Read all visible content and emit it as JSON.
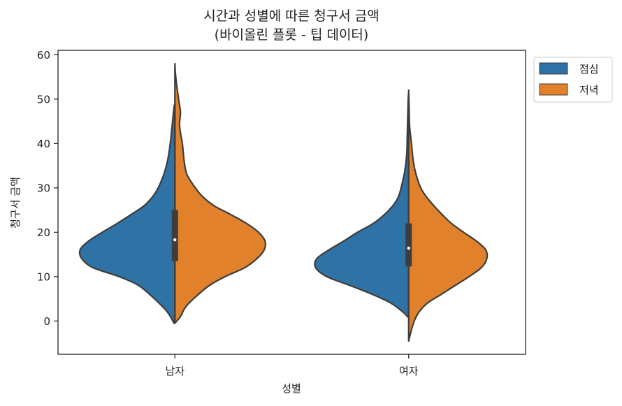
{
  "chart_data": {
    "type": "violin",
    "title_line1": "시간과 성별에 따른 청구서 금액",
    "title_line2": "(바이올린 플롯 - 팁 데이터)",
    "xlabel": "성별",
    "ylabel": "청구서 금액",
    "categories": [
      "남자",
      "여자"
    ],
    "ylim": [
      -7.5,
      61
    ],
    "yticks": [
      0,
      10,
      20,
      30,
      40,
      50,
      60
    ],
    "split": true,
    "legend_position": "outside-top-right",
    "series": [
      {
        "name": "점심",
        "color": "#2f72a6",
        "density": [
          {
            "category": "남자",
            "profile": [
              [
                -0.5,
                0.01
              ],
              [
                2,
                0.08
              ],
              [
                5,
                0.22
              ],
              [
                8,
                0.39
              ],
              [
                10,
                0.6
              ],
              [
                12,
                0.88
              ],
              [
                14,
                1.0
              ],
              [
                16,
                1.02
              ],
              [
                18,
                0.93
              ],
              [
                20,
                0.78
              ],
              [
                22,
                0.62
              ],
              [
                24,
                0.47
              ],
              [
                26,
                0.33
              ],
              [
                28,
                0.24
              ],
              [
                30,
                0.18
              ],
              [
                33,
                0.12
              ],
              [
                36,
                0.08
              ],
              [
                40,
                0.05
              ],
              [
                44,
                0.03
              ],
              [
                48,
                0.01
              ],
              [
                49,
                0.0
              ]
            ]
          },
          {
            "category": "여자",
            "profile": [
              [
                0.9,
                0.01
              ],
              [
                2,
                0.06
              ],
              [
                4,
                0.19
              ],
              [
                6,
                0.39
              ],
              [
                8,
                0.63
              ],
              [
                10,
                0.88
              ],
              [
                12,
                1.0
              ],
              [
                14,
                0.99
              ],
              [
                16,
                0.86
              ],
              [
                18,
                0.7
              ],
              [
                20,
                0.55
              ],
              [
                22,
                0.38
              ],
              [
                24,
                0.26
              ],
              [
                26,
                0.17
              ],
              [
                28,
                0.11
              ],
              [
                31,
                0.07
              ],
              [
                34,
                0.04
              ],
              [
                38,
                0.02
              ],
              [
                42,
                0.015
              ],
              [
                46,
                0.01
              ],
              [
                50,
                0.005
              ],
              [
                51.5,
                0.0
              ]
            ]
          }
        ]
      },
      {
        "name": "저녁",
        "color": "#e1812c",
        "density": [
          {
            "category": "남자",
            "profile": [
              [
                -0.5,
                0.0
              ],
              [
                1,
                0.06
              ],
              [
                3,
                0.11
              ],
              [
                5,
                0.2
              ],
              [
                8,
                0.37
              ],
              [
                10,
                0.54
              ],
              [
                12,
                0.75
              ],
              [
                14,
                0.88
              ],
              [
                16,
                0.96
              ],
              [
                18,
                0.97
              ],
              [
                20,
                0.9
              ],
              [
                22,
                0.77
              ],
              [
                24,
                0.6
              ],
              [
                26,
                0.42
              ],
              [
                28,
                0.3
              ],
              [
                30,
                0.22
              ],
              [
                33,
                0.13
              ],
              [
                36,
                0.1
              ],
              [
                40,
                0.08
              ],
              [
                44,
                0.05
              ],
              [
                47,
                0.06
              ],
              [
                50,
                0.04
              ],
              [
                53,
                0.02
              ],
              [
                56,
                0.005
              ],
              [
                58,
                0.0
              ]
            ]
          },
          {
            "category": "여자",
            "profile": [
              [
                -4.5,
                0.0
              ],
              [
                -2,
                0.03
              ],
              [
                0,
                0.06
              ],
              [
                2,
                0.11
              ],
              [
                4,
                0.2
              ],
              [
                6,
                0.35
              ],
              [
                8,
                0.5
              ],
              [
                10,
                0.65
              ],
              [
                12,
                0.78
              ],
              [
                14,
                0.84
              ],
              [
                16,
                0.83
              ],
              [
                18,
                0.73
              ],
              [
                20,
                0.59
              ],
              [
                22,
                0.46
              ],
              [
                24,
                0.36
              ],
              [
                26,
                0.27
              ],
              [
                28,
                0.19
              ],
              [
                30,
                0.13
              ],
              [
                33,
                0.08
              ],
              [
                36,
                0.05
              ],
              [
                40,
                0.03
              ],
              [
                44,
                0.01
              ],
              [
                48,
                0.005
              ],
              [
                52,
                0.0
              ]
            ]
          }
        ]
      }
    ],
    "box_summary": [
      {
        "category": "남자",
        "q1": 13.5,
        "median": 18.3,
        "q3": 25.0,
        "whisker_low": -0.5,
        "whisker_high": 49.0
      },
      {
        "category": "여자",
        "q1": 12.3,
        "median": 16.4,
        "q3": 22.0,
        "whisker_low": 0.9,
        "whisker_high": 47.0
      }
    ]
  }
}
